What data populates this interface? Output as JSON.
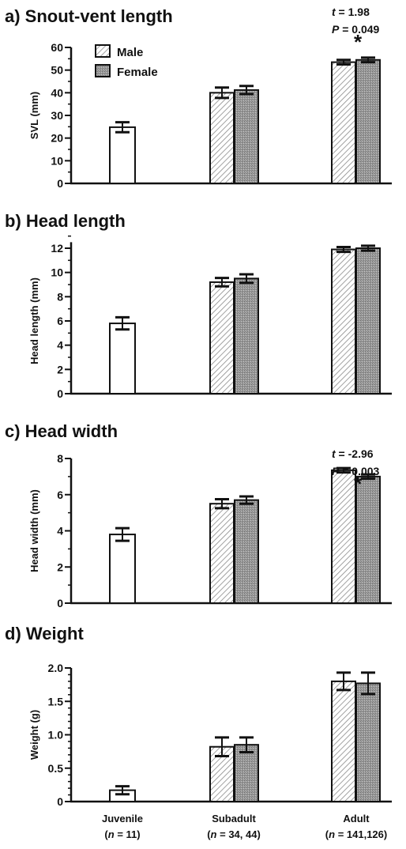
{
  "legend": {
    "male": "Male",
    "female": "Female"
  },
  "categories": [
    {
      "name": "Juvenile",
      "n_prefix": "(",
      "n_italic": "n",
      "n_suffix": " = 11)"
    },
    {
      "name": "Subadult",
      "n_prefix": "(",
      "n_italic": "n",
      "n_suffix": " = 34, 44)"
    },
    {
      "name": "Adult",
      "n_prefix": "(",
      "n_italic": "n",
      "n_suffix": " = 141,126)"
    }
  ],
  "chart_data": [
    {
      "type": "bar",
      "title": "a) Snout-vent length",
      "ylabel": "SVL (mm)",
      "ylim": [
        0,
        60
      ],
      "yticks": [
        "0",
        "10",
        "20",
        "30",
        "40",
        "50",
        "60"
      ],
      "tick_values": [
        0,
        10,
        20,
        30,
        40,
        50,
        60
      ],
      "minor_step": 5,
      "juvenile": {
        "value": 24.8,
        "error": 2.2
      },
      "series": [
        {
          "name": "Male",
          "values": [
            40.0,
            53.5
          ],
          "errors": [
            2.3,
            1.0
          ]
        },
        {
          "name": "Female",
          "values": [
            41.2,
            54.5
          ],
          "errors": [
            1.8,
            1.0
          ]
        }
      ],
      "annotation": {
        "t_label": "t",
        "t_value": " = 1.98",
        "p_label": "P",
        "p_value": " = 0.049",
        "star": "*"
      }
    },
    {
      "type": "bar",
      "title": "b) Head length",
      "ylabel": "Head length (mm)",
      "ylim": [
        0,
        12.5
      ],
      "yticks": [
        "0",
        "2",
        "4",
        "6",
        "8",
        "10",
        "12"
      ],
      "tick_values": [
        0,
        2,
        4,
        6,
        8,
        10,
        12
      ],
      "minor_step": 1,
      "juvenile": {
        "value": 5.8,
        "error": 0.5
      },
      "series": [
        {
          "name": "Male",
          "values": [
            9.2,
            11.9
          ],
          "errors": [
            0.35,
            0.2
          ]
        },
        {
          "name": "Female",
          "values": [
            9.5,
            12.0
          ],
          "errors": [
            0.35,
            0.2
          ]
        }
      ]
    },
    {
      "type": "bar",
      "title": "c) Head width",
      "ylabel": "Head width (mm)",
      "ylim": [
        0,
        8
      ],
      "yticks": [
        "0",
        "2",
        "4",
        "6",
        "8"
      ],
      "tick_values": [
        0,
        2,
        4,
        6,
        8
      ],
      "minor_step": 1,
      "juvenile": {
        "value": 3.8,
        "error": 0.35
      },
      "series": [
        {
          "name": "Male",
          "values": [
            5.5,
            7.35
          ],
          "errors": [
            0.25,
            0.12
          ]
        },
        {
          "name": "Female",
          "values": [
            5.7,
            7.0
          ],
          "errors": [
            0.2,
            0.12
          ]
        }
      ],
      "annotation": {
        "t_label": "t",
        "t_value": " = -2.96",
        "p_label": "P",
        "p_value": " = 0.003",
        "star": "*"
      }
    },
    {
      "type": "bar",
      "title": "d) Weight",
      "ylabel": "Weight  (g)",
      "ylim": [
        0,
        2.0
      ],
      "yticks": [
        "0",
        "0.5",
        "1.0",
        "1.5",
        "2.0"
      ],
      "tick_values": [
        0,
        0.5,
        1.0,
        1.5,
        2.0
      ],
      "minor_step": 0.1,
      "juvenile": {
        "value": 0.17,
        "error": 0.06
      },
      "series": [
        {
          "name": "Male",
          "values": [
            0.82,
            1.8
          ],
          "errors": [
            0.14,
            0.13
          ]
        },
        {
          "name": "Female",
          "values": [
            0.85,
            1.77
          ],
          "errors": [
            0.11,
            0.16
          ]
        }
      ]
    }
  ]
}
